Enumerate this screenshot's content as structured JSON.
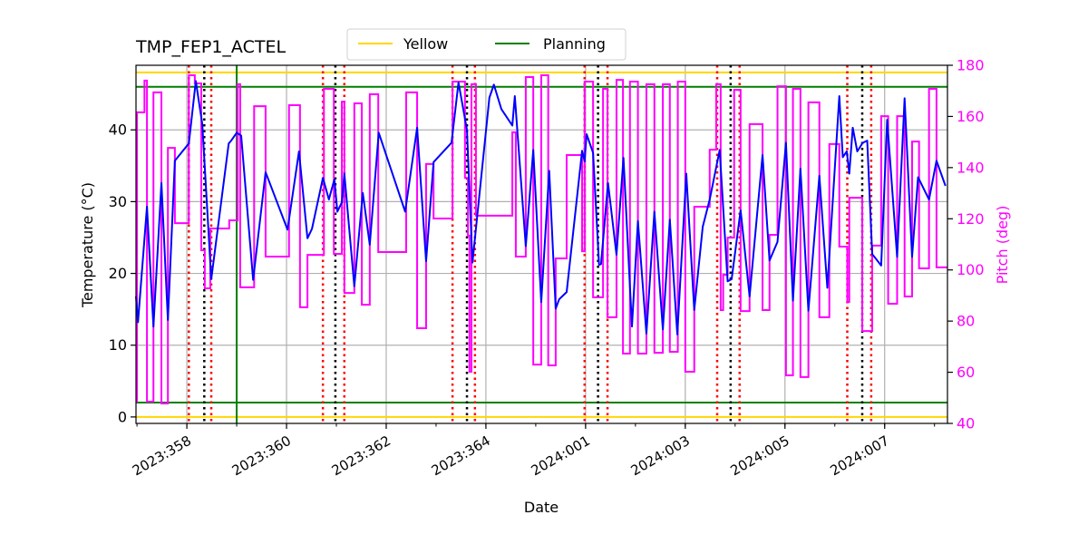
{
  "chart_data": {
    "type": "line",
    "title": "TMP_FEP1_ACTEL",
    "xlabel": "Date",
    "ylabel": "Temperature ($^\\circ$C)",
    "ylabel_display": "Temperature (°C)",
    "y2label": "Pitch (deg)",
    "xlim": [
      "2023:356.98",
      "2024:008.26"
    ],
    "ylim": [
      -0.9,
      49.0
    ],
    "y2lim": [
      40,
      180
    ],
    "grid": true,
    "legend_position": "top-center",
    "xticks": [
      "2023:358",
      "2023:360",
      "2023:362",
      "2023:364",
      "2024:001",
      "2024:003",
      "2024:005",
      "2024:007"
    ],
    "yticks": [
      0,
      10,
      20,
      30,
      40
    ],
    "y2ticks": [
      40,
      60,
      80,
      100,
      120,
      140,
      160,
      180
    ],
    "colors": {
      "temperature": "#0000ff",
      "pitch": "#ff00ff",
      "yellow": "#ffd700",
      "planning": "#008000",
      "red_dotted": "#ff0000",
      "black_dotted": "#000000",
      "grid": "#b0b0b0"
    },
    "legend": [
      {
        "name": "Yellow",
        "color": "#ffd700"
      },
      {
        "name": "Planning",
        "color": "#008000"
      }
    ],
    "hlines": [
      {
        "series": "Yellow",
        "y": 48.0
      },
      {
        "series": "Yellow",
        "y": 0.0
      },
      {
        "series": "Planning",
        "y": 46.0
      },
      {
        "series": "Planning",
        "y": 2.0
      }
    ],
    "vlines": [
      {
        "x": "2023:359.00",
        "style": "solid",
        "color": "#008000"
      },
      {
        "x": "2023:358.04",
        "style": "dotted",
        "color": "#ff0000"
      },
      {
        "x": "2023:358.35",
        "style": "dotted",
        "color": "#000000"
      },
      {
        "x": "2023:358.49",
        "style": "dotted",
        "color": "#ff0000"
      },
      {
        "x": "2023:360.73",
        "style": "dotted",
        "color": "#ff0000"
      },
      {
        "x": "2023:360.98",
        "style": "dotted",
        "color": "#000000"
      },
      {
        "x": "2023:361.16",
        "style": "dotted",
        "color": "#ff0000"
      },
      {
        "x": "2023:363.33",
        "style": "dotted",
        "color": "#ff0000"
      },
      {
        "x": "2023:363.62",
        "style": "dotted",
        "color": "#000000"
      },
      {
        "x": "2023:363.78",
        "style": "dotted",
        "color": "#ff0000"
      },
      {
        "x": "2023:365.98",
        "style": "dotted",
        "color": "#ff0000"
      },
      {
        "x": "2024:001.25",
        "style": "dotted",
        "color": "#000000"
      },
      {
        "x": "2024:001.44",
        "style": "dotted",
        "color": "#ff0000"
      },
      {
        "x": "2024:003.64",
        "style": "dotted",
        "color": "#ff0000"
      },
      {
        "x": "2024:003.91",
        "style": "dotted",
        "color": "#000000"
      },
      {
        "x": "2024:004.09",
        "style": "dotted",
        "color": "#ff0000"
      },
      {
        "x": "2024:006.25",
        "style": "dotted",
        "color": "#ff0000"
      },
      {
        "x": "2024:006.55",
        "style": "dotted",
        "color": "#000000"
      },
      {
        "x": "2024:006.73",
        "style": "dotted",
        "color": "#ff0000"
      }
    ],
    "temperature": [
      [
        "2023:356.98",
        16.8
      ],
      [
        "2023:357.02",
        13.2
      ],
      [
        "2023:357.20",
        29.3
      ],
      [
        "2023:357.33",
        12.6
      ],
      [
        "2023:357.49",
        32.6
      ],
      [
        "2023:357.62",
        13.5
      ],
      [
        "2023:357.76",
        35.7
      ],
      [
        "2023:358.04",
        38.1
      ],
      [
        "2023:358.18",
        46.8
      ],
      [
        "2023:358.31",
        40.8
      ],
      [
        "2023:358.49",
        19.2
      ],
      [
        "2023:358.84",
        38.1
      ],
      [
        "2023:358.89",
        38.5
      ],
      [
        "2023:359.00",
        39.6
      ],
      [
        "2023:359.09",
        39.2
      ],
      [
        "2023:359.33",
        19.1
      ],
      [
        "2023:359.58",
        34.1
      ],
      [
        "2023:360.02",
        26.1
      ],
      [
        "2023:360.25",
        37.0
      ],
      [
        "2023:360.42",
        24.9
      ],
      [
        "2023:360.51",
        26.2
      ],
      [
        "2023:360.73",
        33.3
      ],
      [
        "2023:360.85",
        30.3
      ],
      [
        "2023:360.96",
        33.1
      ],
      [
        "2023:361.02",
        28.6
      ],
      [
        "2023:361.11",
        29.9
      ],
      [
        "2023:361.16",
        33.9
      ],
      [
        "2023:361.36",
        18.2
      ],
      [
        "2023:361.53",
        31.2
      ],
      [
        "2023:361.67",
        24.0
      ],
      [
        "2023:361.85",
        39.6
      ],
      [
        "2023:362.38",
        28.6
      ],
      [
        "2023:362.62",
        40.3
      ],
      [
        "2023:362.80",
        21.7
      ],
      [
        "2023:362.95",
        35.5
      ],
      [
        "2023:363.31",
        38.2
      ],
      [
        "2023:363.45",
        46.6
      ],
      [
        "2023:363.62",
        40.0
      ],
      [
        "2023:363.73",
        21.5
      ],
      [
        "2023:364.07",
        44.5
      ],
      [
        "2023:364.16",
        46.3
      ],
      [
        "2023:364.31",
        42.9
      ],
      [
        "2023:364.53",
        40.6
      ],
      [
        "2023:364.58",
        44.7
      ],
      [
        "2023:364.80",
        23.8
      ],
      [
        "2023:364.95",
        37.2
      ],
      [
        "2023:365.11",
        16.0
      ],
      [
        "2023:365.27",
        34.3
      ],
      [
        "2023:365.40",
        15.1
      ],
      [
        "2023:365.47",
        16.4
      ],
      [
        "2023:365.62",
        17.4
      ],
      [
        "2023:365.93",
        37.1
      ],
      [
        "2023:365.98",
        35.6
      ],
      [
        "2024:001.02",
        39.4
      ],
      [
        "2024:001.15",
        36.8
      ],
      [
        "2024:001.27",
        21.2
      ],
      [
        "2024:001.31",
        21.3
      ],
      [
        "2024:001.45",
        32.6
      ],
      [
        "2024:001.62",
        22.6
      ],
      [
        "2024:001.76",
        36.1
      ],
      [
        "2024:001.93",
        12.6
      ],
      [
        "2024:002.05",
        27.3
      ],
      [
        "2024:002.22",
        11.6
      ],
      [
        "2024:002.38",
        28.6
      ],
      [
        "2024:002.55",
        12.2
      ],
      [
        "2024:002.69",
        27.5
      ],
      [
        "2024:002.84",
        11.5
      ],
      [
        "2024:003.02",
        33.9
      ],
      [
        "2024:003.18",
        14.9
      ],
      [
        "2024:003.35",
        26.5
      ],
      [
        "2024:003.49",
        30.3
      ],
      [
        "2024:003.69",
        37.2
      ],
      [
        "2024:003.85",
        18.9
      ],
      [
        "2024:003.93",
        19.2
      ],
      [
        "2024:004.11",
        28.8
      ],
      [
        "2024:004.29",
        16.8
      ],
      [
        "2024:004.55",
        36.5
      ],
      [
        "2024:004.69",
        21.8
      ],
      [
        "2024:004.85",
        24.4
      ],
      [
        "2024:005.02",
        38.2
      ],
      [
        "2024:005.16",
        16.2
      ],
      [
        "2024:005.31",
        34.6
      ],
      [
        "2024:005.47",
        14.8
      ],
      [
        "2024:005.69",
        33.6
      ],
      [
        "2024:005.85",
        18.0
      ],
      [
        "2024:006.09",
        44.7
      ],
      [
        "2024:006.16",
        36.2
      ],
      [
        "2024:006.24",
        37.0
      ],
      [
        "2024:006.29",
        33.9
      ],
      [
        "2024:006.36",
        40.3
      ],
      [
        "2024:006.45",
        37.0
      ],
      [
        "2024:006.56",
        38.2
      ],
      [
        "2024:006.65",
        38.5
      ],
      [
        "2024:006.75",
        22.7
      ],
      [
        "2024:006.93",
        21.1
      ],
      [
        "2024:007.05",
        41.4
      ],
      [
        "2024:007.25",
        22.3
      ],
      [
        "2024:007.40",
        44.4
      ],
      [
        "2024:007.55",
        22.3
      ],
      [
        "2024:007.67",
        33.4
      ],
      [
        "2024:007.89",
        30.3
      ],
      [
        "2024:008.04",
        35.7
      ],
      [
        "2024:008.22",
        32.2
      ]
    ],
    "pitch_steps": [
      [
        "2023:356.98",
        48.5
      ],
      [
        "2023:357.00",
        161.6
      ],
      [
        "2023:357.15",
        174.0
      ],
      [
        "2023:357.20",
        48.5
      ],
      [
        "2023:357.33",
        169.4
      ],
      [
        "2023:357.49",
        47.8
      ],
      [
        "2023:357.62",
        147.7
      ],
      [
        "2023:357.76",
        118.3
      ],
      [
        "2023:358.04",
        176.1
      ],
      [
        "2023:358.16",
        172.9
      ],
      [
        "2023:358.29",
        107.7
      ],
      [
        "2023:358.36",
        92.8
      ],
      [
        "2023:358.47",
        116.2
      ],
      [
        "2023:358.85",
        119.4
      ],
      [
        "2023:359.02",
        172.6
      ],
      [
        "2023:359.07",
        93.2
      ],
      [
        "2023:359.35",
        164.0
      ],
      [
        "2023:359.58",
        105.2
      ],
      [
        "2023:360.05",
        164.4
      ],
      [
        "2023:360.27",
        85.4
      ],
      [
        "2023:360.42",
        105.9
      ],
      [
        "2023:360.75",
        170.8
      ],
      [
        "2023:360.95",
        106.3
      ],
      [
        "2023:361.11",
        165.8
      ],
      [
        "2023:361.16",
        91.0
      ],
      [
        "2023:361.36",
        165.1
      ],
      [
        "2023:361.51",
        86.4
      ],
      [
        "2023:361.67",
        168.7
      ],
      [
        "2023:361.84",
        107.0
      ],
      [
        "2023:362.40",
        169.4
      ],
      [
        "2023:362.62",
        77.2
      ],
      [
        "2023:362.80",
        141.4
      ],
      [
        "2023:362.95",
        120.1
      ],
      [
        "2023:363.33",
        173.6
      ],
      [
        "2023:363.58",
        136.0
      ],
      [
        "2023:363.64",
        113.4
      ],
      [
        "2023:363.67",
        60.2
      ],
      [
        "2023:363.71",
        172.6
      ],
      [
        "2023:363.80",
        121.2
      ],
      [
        "2023:364.53",
        153.8
      ],
      [
        "2023:364.60",
        105.2
      ],
      [
        "2023:364.80",
        175.4
      ],
      [
        "2023:364.95",
        63.0
      ],
      [
        "2023:365.11",
        176.1
      ],
      [
        "2023:365.25",
        62.7
      ],
      [
        "2023:365.40",
        104.5
      ],
      [
        "2023:365.62",
        144.9
      ],
      [
        "2023:365.93",
        107.3
      ],
      [
        "2023:365.98",
        173.6
      ],
      [
        "2024:001.15",
        89.3
      ],
      [
        "2024:001.35",
        170.8
      ],
      [
        "2024:001.44",
        81.5
      ],
      [
        "2024:001.62",
        174.3
      ],
      [
        "2024:001.75",
        67.3
      ],
      [
        "2024:001.89",
        173.6
      ],
      [
        "2024:002.05",
        67.3
      ],
      [
        "2024:002.22",
        172.6
      ],
      [
        "2024:002.38",
        67.6
      ],
      [
        "2024:002.55",
        172.6
      ],
      [
        "2024:002.69",
        68.0
      ],
      [
        "2024:002.85",
        173.6
      ],
      [
        "2024:003.00",
        60.2
      ],
      [
        "2024:003.18",
        124.7
      ],
      [
        "2024:003.49",
        147.0
      ],
      [
        "2024:003.62",
        172.6
      ],
      [
        "2024:003.71",
        84.3
      ],
      [
        "2024:003.76",
        98.1
      ],
      [
        "2024:003.85",
        112.6
      ],
      [
        "2024:003.98",
        170.4
      ],
      [
        "2024:004.11",
        83.9
      ],
      [
        "2024:004.29",
        157.0
      ],
      [
        "2024:004.55",
        84.3
      ],
      [
        "2024:004.69",
        113.7
      ],
      [
        "2024:004.85",
        171.8
      ],
      [
        "2024:005.02",
        58.8
      ],
      [
        "2024:005.16",
        170.8
      ],
      [
        "2024:005.31",
        58.1
      ],
      [
        "2024:005.47",
        165.5
      ],
      [
        "2024:005.69",
        81.5
      ],
      [
        "2024:005.89",
        149.2
      ],
      [
        "2024:006.09",
        109.1
      ],
      [
        "2024:006.25",
        87.5
      ],
      [
        "2024:006.29",
        128.2
      ],
      [
        "2024:006.55",
        76.1
      ],
      [
        "2024:006.75",
        109.5
      ],
      [
        "2024:006.93",
        160.1
      ],
      [
        "2024:007.07",
        86.8
      ],
      [
        "2024:007.25",
        160.1
      ],
      [
        "2024:007.40",
        89.6
      ],
      [
        "2024:007.55",
        150.2
      ],
      [
        "2024:007.69",
        100.6
      ],
      [
        "2024:007.89",
        170.8
      ],
      [
        "2024:008.04",
        101.0
      ]
    ]
  }
}
